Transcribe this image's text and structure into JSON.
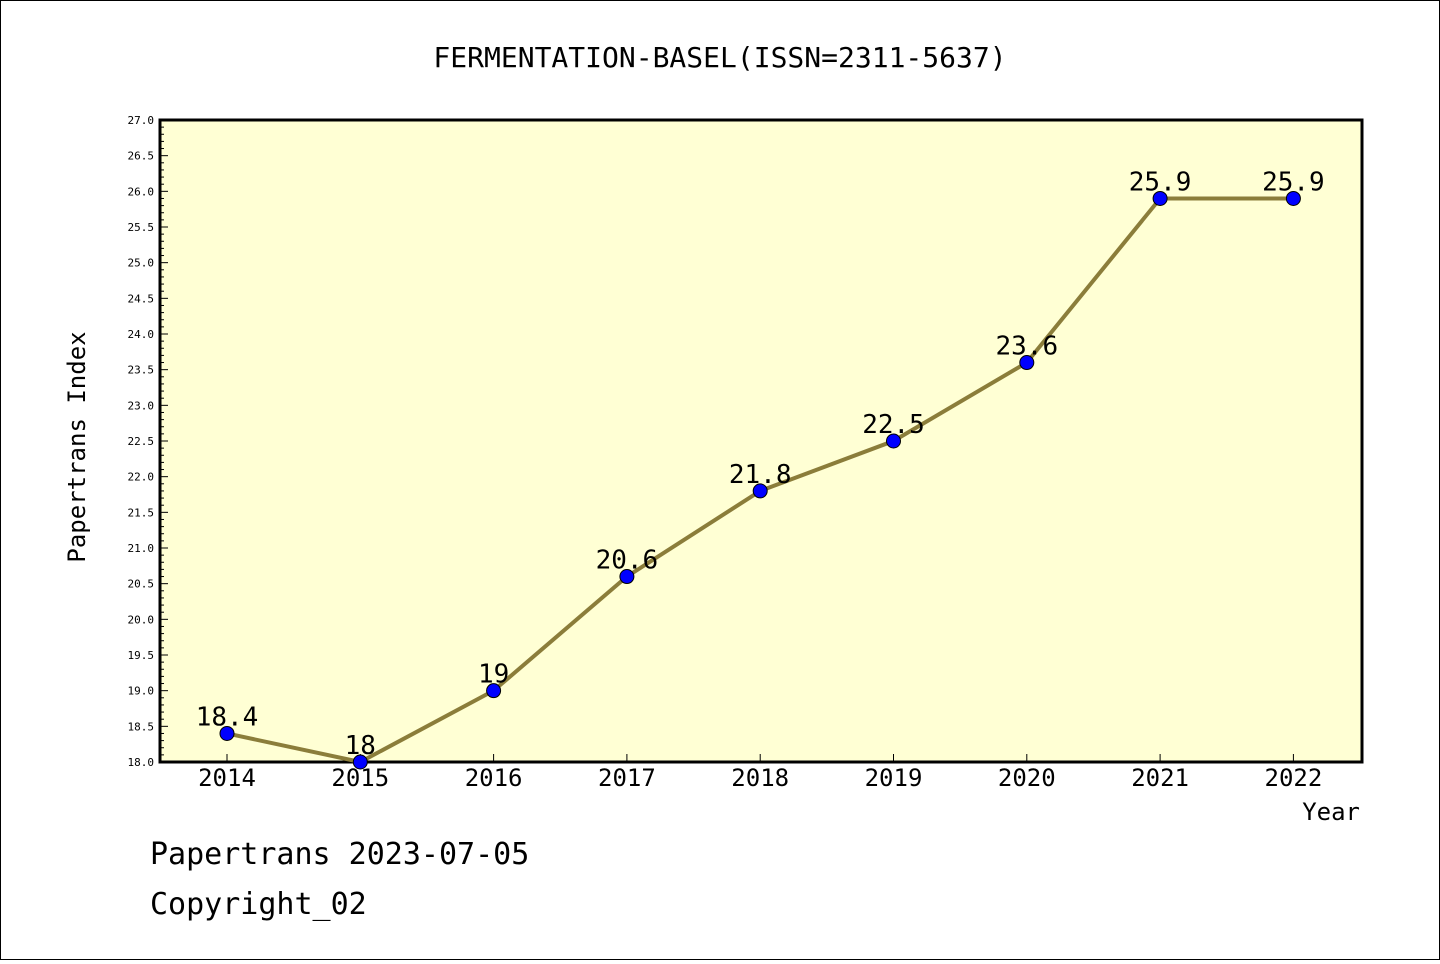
{
  "chart_data": {
    "type": "line",
    "title": "FERMENTATION-BASEL(ISSN=2311-5637)",
    "xlabel": "Year",
    "ylabel": "Papertrans Index",
    "categories": [
      "2014",
      "2015",
      "2016",
      "2017",
      "2018",
      "2019",
      "2020",
      "2021",
      "2022"
    ],
    "values": [
      18.4,
      18,
      19,
      20.6,
      21.8,
      22.5,
      23.6,
      25.9,
      25.9
    ],
    "value_labels": [
      "18.4",
      "18",
      "19",
      "20.6",
      "21.8",
      "22.5",
      "23.6",
      "25.9",
      "25.9"
    ],
    "ylim": [
      18.0,
      27.0
    ],
    "yticks": [
      "18.0",
      "18.5",
      "19.0",
      "19.5",
      "20.0",
      "20.5",
      "21.0",
      "21.5",
      "22.0",
      "22.5",
      "23.0",
      "23.5",
      "24.0",
      "24.5",
      "25.0",
      "25.5",
      "26.0",
      "26.5",
      "27.0"
    ],
    "grid": false,
    "colors": {
      "plot_background": "#ffffd4",
      "line": "#8b7d3a",
      "marker": "#0000ff"
    }
  },
  "footer": {
    "line1": "Papertrans 2023-07-05",
    "line2": "Copyright_02"
  }
}
